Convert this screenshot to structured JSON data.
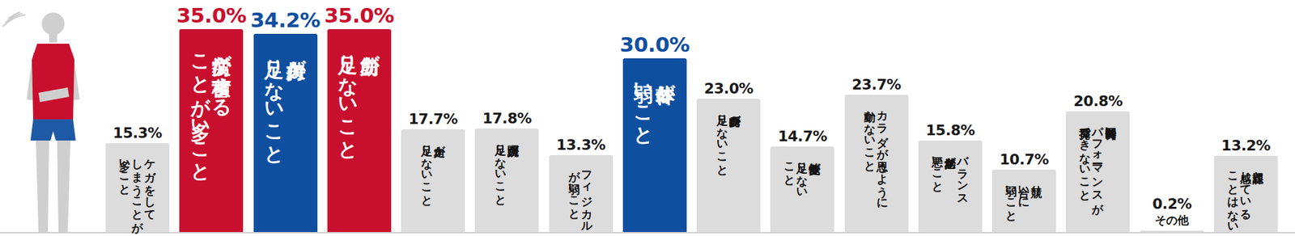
{
  "chart_data": {
    "type": "bar",
    "categories": [
      "ケガをして\nしまうことが\n多いこと",
      "疲労が蓄積する\nことが多いこと",
      "持久力が\n足りないこと",
      "筋力が\n足りないこと",
      "走力が\n足りないこと",
      "跳躍力が\n足りないこと",
      "フィジカル\nが弱いこと",
      "体幹が\n弱いこと",
      "瞬発力が\n足りないこと",
      "敏捷性が\n足りない\nこと",
      "カラダが思うように\n動かないこと",
      "バランス\n感覚が\n悪いこと",
      "競り\n合いに\n弱いこと",
      "長時間良い\nパフォーマンスが\n発揮できないこと",
      "その他",
      "課題と\n感じている\nことはない"
    ],
    "values": [
      15.3,
      35.0,
      34.2,
      35.0,
      17.7,
      17.8,
      13.3,
      30.0,
      23.0,
      14.7,
      23.7,
      15.8,
      10.7,
      20.8,
      0.2,
      13.2
    ],
    "value_labels": [
      "15.3%",
      "35.0%",
      "34.2%",
      "35.0%",
      "17.7%",
      "17.8%",
      "13.3%",
      "30.0%",
      "23.0%",
      "14.7%",
      "23.7%",
      "15.8%",
      "10.7%",
      "20.8%",
      "0.2%",
      "13.2%"
    ],
    "colors": [
      "#dcdcdc",
      "#c8102e",
      "#0f4fa0",
      "#c8102e",
      "#dcdcdc",
      "#dcdcdc",
      "#dcdcdc",
      "#0f4fa0",
      "#dcdcdc",
      "#dcdcdc",
      "#dcdcdc",
      "#dcdcdc",
      "#dcdcdc",
      "#dcdcdc",
      "#dcdcdc",
      "#dcdcdc"
    ],
    "ylim": [
      0,
      35
    ],
    "data_labels": true,
    "tick_labels": false,
    "grid": false
  }
}
